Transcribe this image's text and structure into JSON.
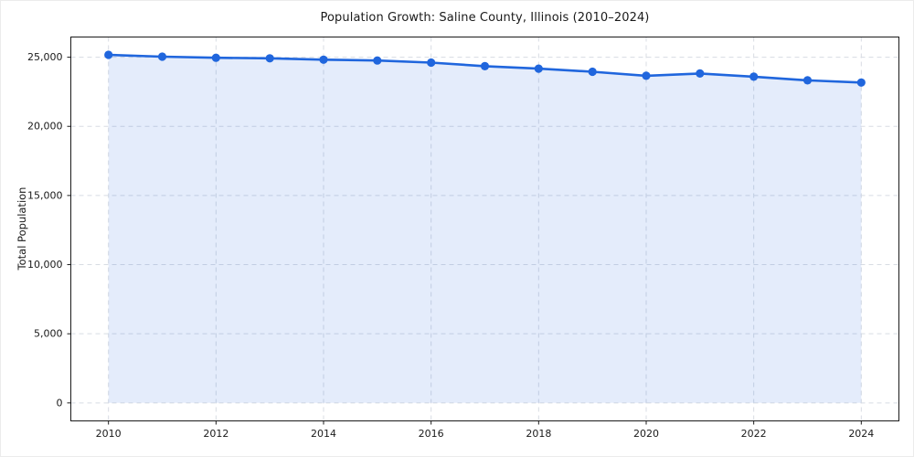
{
  "figure": {
    "background": "#ffffff",
    "edge_border": "#ececec"
  },
  "chart_data": {
    "type": "area",
    "title": "Population Growth: Saline County, Illinois (2010–2024)",
    "xlabel": "",
    "ylabel": "Total Population",
    "x": [
      2010,
      2011,
      2012,
      2013,
      2014,
      2015,
      2016,
      2017,
      2018,
      2019,
      2020,
      2021,
      2022,
      2023,
      2024
    ],
    "values": [
      25170,
      25040,
      24960,
      24920,
      24820,
      24760,
      24610,
      24350,
      24170,
      23950,
      23660,
      23820,
      23590,
      23330,
      23170
    ],
    "series_name": "Total Population",
    "xticks": [
      2010,
      2012,
      2014,
      2016,
      2018,
      2020,
      2022,
      2024
    ],
    "yticks": [
      0,
      5000,
      10000,
      15000,
      20000,
      25000
    ],
    "xlim": [
      2009.3,
      2024.7
    ],
    "ylim": [
      -1300,
      26460
    ],
    "fill_baseline": 0,
    "grid": {
      "visible": true,
      "style": "dashed",
      "color": "#d8dce3"
    },
    "legend": "none",
    "colors": {
      "line": "#2066dd",
      "marker": "#2066dd",
      "fill": "#2066dd",
      "fill_opacity": 0.12,
      "spine": "#1a1a1a",
      "tick": "#1a1a1a",
      "tick_label": "#1a1a1a",
      "title": "#1a1a1a"
    }
  }
}
